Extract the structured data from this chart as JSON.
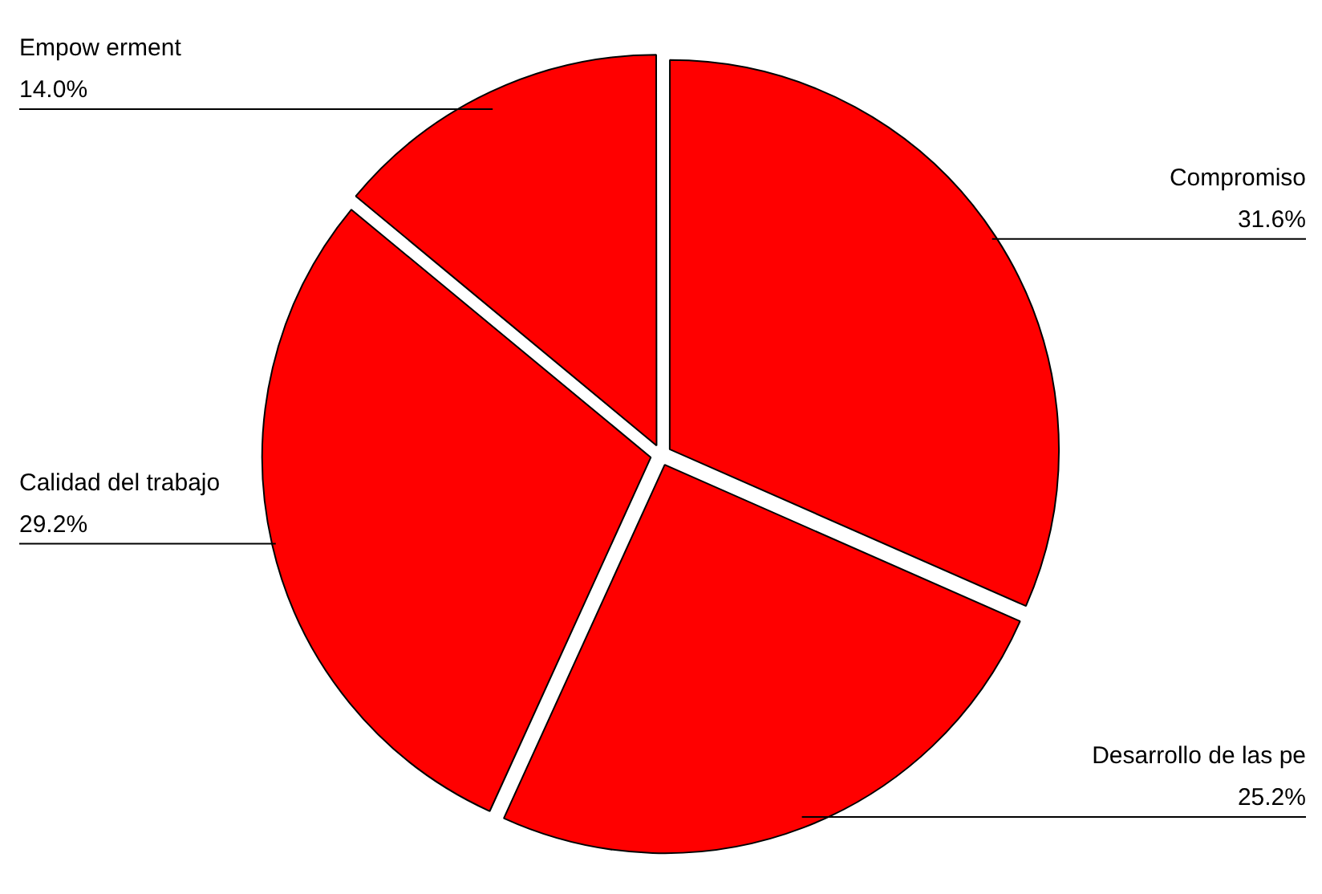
{
  "chart_data": {
    "type": "pie",
    "categories": [
      "Compromiso",
      "Desarrollo de las pe",
      "Calidad del trabajo",
      "Empow erment"
    ],
    "values": [
      31.6,
      25.2,
      29.2,
      14.0
    ],
    "colors": [
      "#ff0000",
      "#ff0000",
      "#ff0000",
      "#ff0000"
    ],
    "value_labels": [
      "31.6%",
      "25.2%",
      "29.2%",
      "14.0%"
    ],
    "legend": false
  }
}
